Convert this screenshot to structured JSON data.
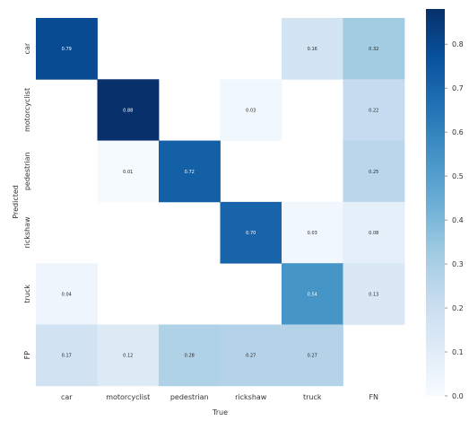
{
  "chart_data": {
    "type": "heatmap",
    "xlabel": "True",
    "ylabel": "Predicted",
    "x_categories": [
      "car",
      "motorcyclist",
      "pedestrian",
      "rickshaw",
      "truck",
      "FN"
    ],
    "y_categories": [
      "car",
      "motorcyclist",
      "pedestrian",
      "rickshaw",
      "truck",
      "FP"
    ],
    "values": [
      [
        0.79,
        null,
        null,
        null,
        0.16,
        0.32
      ],
      [
        null,
        0.88,
        null,
        0.03,
        null,
        0.22
      ],
      [
        null,
        0.01,
        0.72,
        null,
        null,
        0.25
      ],
      [
        null,
        null,
        null,
        0.7,
        0.03,
        0.08
      ],
      [
        0.04,
        null,
        null,
        null,
        0.54,
        0.13
      ],
      [
        0.17,
        0.12,
        0.28,
        0.27,
        0.27,
        null
      ]
    ],
    "cell_labels": [
      [
        "0.79",
        "",
        "",
        "",
        "0.16",
        "0.32"
      ],
      [
        "",
        "0.88",
        "",
        "0.03",
        "",
        "0.22"
      ],
      [
        "",
        "0.01",
        "0.72",
        "",
        "",
        "0.25"
      ],
      [
        "",
        "",
        "",
        "0.70",
        "0.03",
        "0.08"
      ],
      [
        "0.04",
        "",
        "",
        "",
        "0.54",
        "0.13"
      ],
      [
        "0.17",
        "0.12",
        "0.28",
        "0.27",
        "0.27",
        ""
      ]
    ],
    "colorbar": {
      "min": 0.0,
      "max": 0.88,
      "colormap": "Blues",
      "ticks": [
        "0.0",
        "0.1",
        "0.2",
        "0.3",
        "0.4",
        "0.5",
        "0.6",
        "0.7",
        "0.8"
      ],
      "tick_values": [
        0.0,
        0.1,
        0.2,
        0.3,
        0.4,
        0.5,
        0.6,
        0.7,
        0.8
      ]
    },
    "grid": false
  }
}
